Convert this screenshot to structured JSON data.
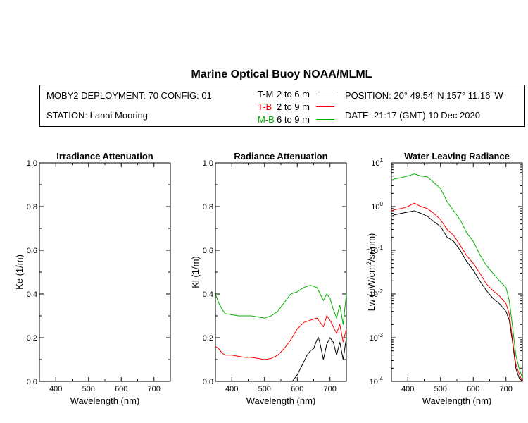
{
  "title": "Marine Optical Buoy NOAA/MLML",
  "header": {
    "deployment": "MOBY2 DEPLOYMENT: 70 CONFIG: 01",
    "station": "STATION: Lanai Mooring",
    "position": "POSITION: 20° 49.54' N   157° 11.16' W",
    "date": "DATE: 21:17 (GMT) 10 Dec 2020",
    "legend": [
      {
        "code": "T-M",
        "range": "2 to 6  m",
        "color": "#000000"
      },
      {
        "code": "T-B",
        "range": "2 to 9  m",
        "color": "#ff0000"
      },
      {
        "code": "M-B",
        "range": "6 to 9  m",
        "color": "#00b000"
      }
    ]
  },
  "chart_data": [
    {
      "type": "line",
      "title": "Irradiance Attenuation",
      "xlabel": "Wavelength (nm)",
      "ylabel": "Ke  (1/m)",
      "xlim": [
        350,
        750
      ],
      "ylim": [
        0,
        1
      ],
      "xticks": [
        "400",
        "500",
        "600",
        "700"
      ],
      "yticks": [
        "0.0",
        "0.2",
        "0.4",
        "0.6",
        "0.8",
        "1.0"
      ],
      "series": []
    },
    {
      "type": "line",
      "title": "Radiance Attenuation",
      "xlabel": "Wavelength (nm)",
      "ylabel": "Kl  (1/m)",
      "xlim": [
        350,
        750
      ],
      "ylim": [
        0,
        1
      ],
      "xticks": [
        "400",
        "500",
        "600",
        "700"
      ],
      "yticks": [
        "0.0",
        "0.2",
        "0.4",
        "0.6",
        "0.8",
        "1.0"
      ],
      "series": [
        {
          "name": "T-M",
          "color": "#000000",
          "x": [
            585,
            590,
            600,
            610,
            620,
            630,
            640,
            650,
            660,
            665,
            670,
            680,
            690,
            700,
            710,
            720,
            730,
            740,
            750
          ],
          "y": [
            0.0,
            0.01,
            0.03,
            0.06,
            0.09,
            0.12,
            0.14,
            0.15,
            0.19,
            0.2,
            0.17,
            0.1,
            0.17,
            0.2,
            0.18,
            0.12,
            0.18,
            0.1,
            0.2
          ]
        },
        {
          "name": "T-B",
          "color": "#ff0000",
          "x": [
            350,
            360,
            370,
            380,
            400,
            420,
            440,
            460,
            480,
            500,
            520,
            540,
            560,
            580,
            600,
            620,
            640,
            660,
            670,
            680,
            690,
            700,
            710,
            720,
            730,
            740,
            750
          ],
          "y": [
            0.16,
            0.15,
            0.13,
            0.12,
            0.12,
            0.115,
            0.11,
            0.11,
            0.105,
            0.1,
            0.105,
            0.12,
            0.15,
            0.19,
            0.24,
            0.27,
            0.28,
            0.29,
            0.27,
            0.25,
            0.3,
            0.28,
            0.25,
            0.22,
            0.26,
            0.18,
            0.24
          ]
        },
        {
          "name": "M-B",
          "color": "#00b000",
          "x": [
            350,
            360,
            370,
            380,
            400,
            420,
            440,
            460,
            480,
            500,
            520,
            540,
            560,
            580,
            600,
            620,
            640,
            660,
            670,
            680,
            690,
            700,
            710,
            720,
            730,
            740,
            750
          ],
          "y": [
            0.4,
            0.36,
            0.33,
            0.31,
            0.305,
            0.3,
            0.3,
            0.3,
            0.295,
            0.29,
            0.3,
            0.32,
            0.36,
            0.4,
            0.41,
            0.43,
            0.44,
            0.43,
            0.4,
            0.37,
            0.4,
            0.38,
            0.33,
            0.29,
            0.35,
            0.26,
            0.4
          ]
        }
      ]
    },
    {
      "type": "line",
      "title": "Water Leaving Radiance",
      "xlabel": "Wavelength (nm)",
      "ylabel_prefix": "Lw  (",
      "ylabel_mu": "μ",
      "ylabel_unit": "W/cm",
      "ylabel_sup": "2",
      "ylabel_suffix": "/sr/nm)",
      "yscale": "log",
      "xlim": [
        350,
        750
      ],
      "ylim": [
        0.0001,
        10
      ],
      "xticks": [
        "400",
        "500",
        "600",
        "700"
      ],
      "yticks": [
        {
          "base": "10",
          "exp": "1"
        },
        {
          "base": "10",
          "exp": "0"
        },
        {
          "base": "10",
          "exp": "-1"
        },
        {
          "base": "10",
          "exp": "-2"
        },
        {
          "base": "10",
          "exp": "-3"
        },
        {
          "base": "10",
          "exp": "-4"
        }
      ],
      "series": [
        {
          "name": "T-M",
          "color": "#000000",
          "x": [
            350,
            360,
            380,
            400,
            420,
            440,
            460,
            480,
            500,
            520,
            540,
            560,
            580,
            600,
            620,
            640,
            660,
            680,
            700,
            710,
            720,
            730,
            740,
            750
          ],
          "y": [
            0.6,
            0.65,
            0.7,
            0.75,
            0.8,
            0.7,
            0.6,
            0.45,
            0.35,
            0.2,
            0.16,
            0.1,
            0.055,
            0.035,
            0.02,
            0.012,
            0.008,
            0.006,
            0.004,
            0.0025,
            0.0008,
            0.0002,
            0.00012,
            0.0001
          ]
        },
        {
          "name": "T-B",
          "color": "#ff0000",
          "x": [
            350,
            360,
            380,
            400,
            420,
            440,
            460,
            480,
            500,
            520,
            540,
            560,
            580,
            600,
            620,
            640,
            660,
            680,
            700,
            710,
            720,
            730,
            740,
            750
          ],
          "y": [
            0.8,
            0.85,
            0.9,
            1.0,
            1.2,
            1.0,
            0.9,
            0.7,
            0.5,
            0.3,
            0.22,
            0.13,
            0.075,
            0.05,
            0.03,
            0.017,
            0.012,
            0.009,
            0.006,
            0.0035,
            0.0009,
            0.00025,
            0.00015,
            0.0001
          ]
        },
        {
          "name": "M-B",
          "color": "#00b000",
          "x": [
            350,
            360,
            380,
            400,
            420,
            440,
            460,
            480,
            500,
            520,
            540,
            560,
            580,
            600,
            620,
            640,
            660,
            680,
            700,
            710,
            720,
            730,
            740,
            750
          ],
          "y": [
            4.0,
            4.3,
            4.6,
            5.0,
            5.6,
            5.0,
            4.8,
            3.5,
            2.6,
            1.3,
            0.8,
            0.5,
            0.25,
            0.16,
            0.08,
            0.045,
            0.03,
            0.02,
            0.014,
            0.007,
            0.0018,
            0.0004,
            0.0002,
            0.00012
          ]
        }
      ]
    }
  ]
}
